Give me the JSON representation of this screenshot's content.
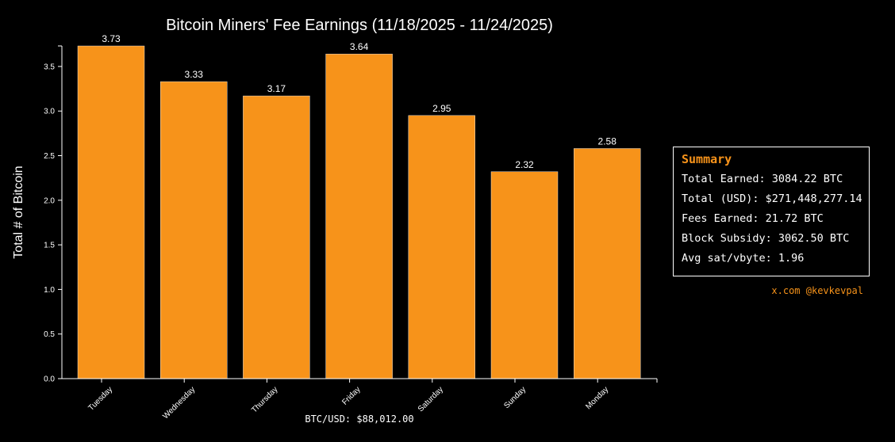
{
  "chart_data": {
    "type": "bar",
    "title": "Bitcoin Miners' Fee Earnings (11/18/2025 - 11/24/2025)",
    "xlabel": "BTC/USD: $88,012.00",
    "ylabel": "Total # of Bitcoin",
    "categories": [
      "Tuesday",
      "Wednesday",
      "Thursday",
      "Friday",
      "Saturday",
      "Sunday",
      "Monday"
    ],
    "values": [
      3.73,
      3.33,
      3.17,
      3.64,
      2.95,
      2.32,
      2.58
    ],
    "value_labels": [
      "3.73",
      "3.33",
      "3.17",
      "3.64",
      "2.95",
      "2.32",
      "2.58"
    ],
    "yticks": [
      "0.0",
      "0.5",
      "1.0",
      "1.5",
      "2.0",
      "2.5",
      "3.0",
      "3.5"
    ],
    "ylim": [
      0,
      3.73
    ],
    "bar_color": "#f7931a",
    "background": "#000000",
    "grid": false
  },
  "summary": {
    "title": "Summary",
    "total_earned": "Total Earned: 3084.22 BTC",
    "total_usd": "Total (USD): $271,448,277.14",
    "fees_earned": "Fees Earned: 21.72 BTC",
    "block_subsidy": "Block Subsidy: 3062.50 BTC",
    "avg_sat_vbyte": "Avg sat/vbyte: 1.96"
  },
  "credit": "x.com @kevkevpal"
}
